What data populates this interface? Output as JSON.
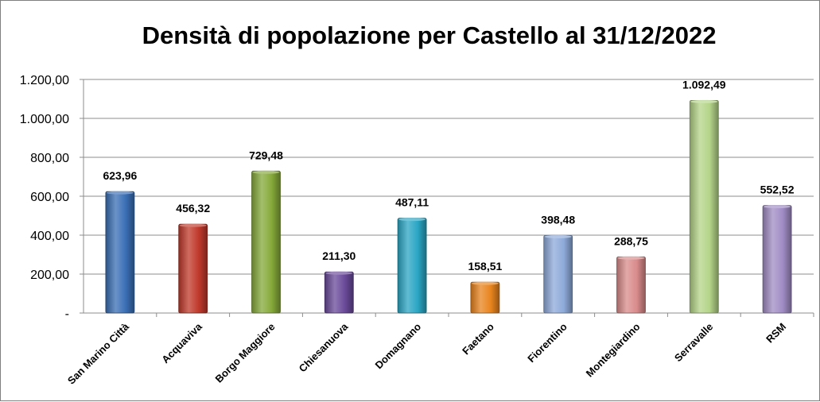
{
  "chart_data": {
    "type": "bar",
    "title": "Densità di popolazione per Castello al 31/12/2022",
    "categories": [
      "San Marino Città",
      "Acquaviva",
      "Borgo Maggiore",
      "Chiesanuova",
      "Domagnano",
      "Faetano",
      "Fiorentino",
      "Montegiardino",
      "Serravalle",
      "RSM"
    ],
    "values": [
      623.96,
      456.32,
      729.48,
      211.3,
      487.11,
      158.51,
      398.48,
      288.75,
      1092.49,
      552.52
    ],
    "value_labels": [
      "623,96",
      "456,32",
      "729,48",
      "211,30",
      "487,11",
      "158,51",
      "398,48",
      "288,75",
      "1.092,49",
      "552,52"
    ],
    "colors": [
      "#3a6fb5",
      "#c0392b",
      "#86a93a",
      "#6a4a9a",
      "#2aa6c4",
      "#e8841e",
      "#8eaad9",
      "#d98b8b",
      "#b4d488",
      "#a08cc4"
    ],
    "ylim": [
      0,
      1200
    ],
    "yticks": [
      0,
      200,
      400,
      600,
      800,
      1000,
      1200
    ],
    "ytick_labels": [
      "-",
      "200,00",
      "400,00",
      "600,00",
      "800,00",
      "1.000,00",
      "1.200,00"
    ],
    "xlabel": "",
    "ylabel": "",
    "grid": true,
    "legend": "none"
  }
}
